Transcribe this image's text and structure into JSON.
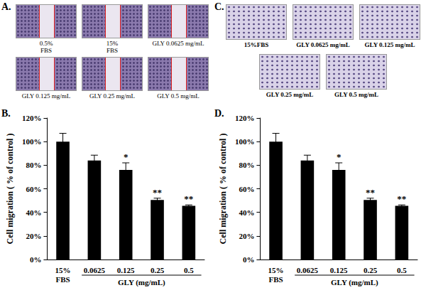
{
  "figure": {
    "panel_labels": [
      "A.",
      "B.",
      "C.",
      "D."
    ],
    "wound_healing_captions": [
      "0.5%\nFBS",
      "15%\nFBS",
      "GLY 0.0625 mg/mL",
      "GLY 0.125 mg/mL",
      "GLY 0.25 mg/mL",
      "GLY 0.5 mg/mL"
    ],
    "transwell_captions": [
      "15%FBS",
      "GLY 0.0625 mg/mL",
      "GLY 0.125 mg/mL",
      "GLY 0.25 mg/mL",
      "GLY 0.5 mg/mL"
    ]
  },
  "chart_data": [
    {
      "type": "bar",
      "categories": [
        "15%\nFBS",
        "0.0625",
        "0.125",
        "0.25",
        "0.5"
      ],
      "values": [
        100,
        84,
        76,
        50.5,
        45.5
      ],
      "errors": [
        7,
        4.5,
        6,
        1.5,
        0.8
      ],
      "annotations": [
        {
          "category": "0.125",
          "text": "*"
        },
        {
          "category": "0.25",
          "text": "**"
        },
        {
          "category": "0.5",
          "text": "**"
        }
      ],
      "x_label": "GLY (mg/mL)",
      "y_label": "Cell migration ( % of control )",
      "ylim": [
        0,
        120
      ],
      "yticks": [
        {
          "value": 0,
          "label": "0%"
        },
        {
          "value": 20,
          "label": "20%"
        },
        {
          "value": 40,
          "label": "40%"
        },
        {
          "value": 60,
          "label": "60%"
        },
        {
          "value": 80,
          "label": "80%"
        },
        {
          "value": 100,
          "label": "100%"
        },
        {
          "value": 120,
          "label": "120%"
        }
      ],
      "color": "#000000",
      "grid": false
    },
    {
      "type": "bar",
      "categories": [
        "15%\nFBS",
        "0.0625",
        "0.125",
        "0.25",
        "0.5"
      ],
      "values": [
        100,
        84,
        76,
        50.5,
        45.5
      ],
      "errors": [
        7,
        4.5,
        6,
        1.5,
        0.8
      ],
      "annotations": [
        {
          "category": "0.125",
          "text": "*"
        },
        {
          "category": "0.25",
          "text": "**"
        },
        {
          "category": "0.5",
          "text": "**"
        }
      ],
      "x_label": "GLY (mg/mL)",
      "y_label": "Cell migration ( % of control )",
      "ylim": [
        0,
        120
      ],
      "yticks": [
        {
          "value": 0,
          "label": "0%"
        },
        {
          "value": 20,
          "label": "20%"
        },
        {
          "value": 40,
          "label": "40%"
        },
        {
          "value": 60,
          "label": "60%"
        },
        {
          "value": 80,
          "label": "80%"
        },
        {
          "value": 100,
          "label": "100%"
        },
        {
          "value": 120,
          "label": "120%"
        }
      ],
      "color": "#000000",
      "grid": false
    }
  ]
}
